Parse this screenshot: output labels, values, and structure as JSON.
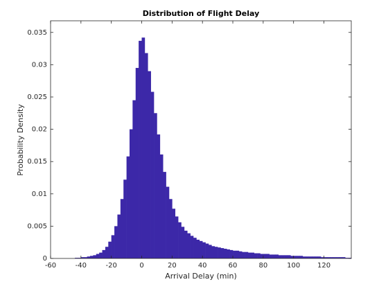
{
  "chart_data": {
    "type": "histogram",
    "title": "Distribution of Flight Delay",
    "xlabel": "Arrival Delay (min)",
    "ylabel": "Probability Density",
    "color": "#3c28a8",
    "bins": [
      -44,
      -42,
      -40,
      -38,
      -36,
      -34,
      -32,
      -30,
      -28,
      -26,
      -24,
      -22,
      -20,
      -18,
      -16,
      -14,
      -12,
      -10,
      -8,
      -6,
      -4,
      -2,
      0,
      2,
      4,
      6,
      8,
      10,
      12,
      14,
      16,
      18,
      20,
      22,
      24,
      26,
      28,
      30,
      32,
      34,
      36,
      38,
      40,
      42,
      44,
      46,
      48,
      50,
      52,
      54,
      56,
      58,
      60,
      62,
      64,
      66,
      68,
      70,
      72,
      74,
      76,
      78,
      80,
      82,
      84,
      86,
      88,
      90,
      92,
      94,
      96,
      98,
      100,
      102,
      104,
      106,
      108,
      110,
      112,
      114,
      116,
      118,
      120,
      122,
      124,
      126,
      128,
      130,
      132,
      134,
      136,
      138
    ],
    "values": [
      0.0001,
      0.0001,
      0.0002,
      0.0002,
      0.0003,
      0.0004,
      0.0005,
      0.0007,
      0.0009,
      0.0013,
      0.0018,
      0.0026,
      0.0036,
      0.005,
      0.0068,
      0.0092,
      0.0122,
      0.0158,
      0.02,
      0.0245,
      0.0295,
      0.0337,
      0.0342,
      0.0318,
      0.029,
      0.0258,
      0.0225,
      0.0192,
      0.0161,
      0.0134,
      0.0111,
      0.0092,
      0.0077,
      0.0065,
      0.0056,
      0.0049,
      0.0043,
      0.0039,
      0.0035,
      0.0032,
      0.0029,
      0.0027,
      0.0025,
      0.0023,
      0.0021,
      0.0019,
      0.0018,
      0.0017,
      0.0016,
      0.0015,
      0.0014,
      0.0013,
      0.0012,
      0.0012,
      0.0011,
      0.001,
      0.001,
      0.0009,
      0.0009,
      0.0008,
      0.0008,
      0.0007,
      0.0007,
      0.0007,
      0.0006,
      0.0006,
      0.0006,
      0.0005,
      0.0005,
      0.0005,
      0.0005,
      0.0004,
      0.0004,
      0.0004,
      0.0004,
      0.0003,
      0.0003,
      0.0003,
      0.0003,
      0.0003,
      0.0003,
      0.0002,
      0.0002,
      0.0002,
      0.0002,
      0.0002,
      0.0002,
      0.0002,
      0.0002,
      0.0001,
      0.0001
    ],
    "xlim": [
      -60,
      138
    ],
    "xticks": [
      -60,
      -40,
      -20,
      0,
      20,
      40,
      60,
      80,
      100,
      120
    ],
    "ylim": [
      0,
      0.0368
    ],
    "yticks": [
      0,
      0.005,
      0.01,
      0.015,
      0.02,
      0.025,
      0.03,
      0.035
    ],
    "grid": false
  }
}
